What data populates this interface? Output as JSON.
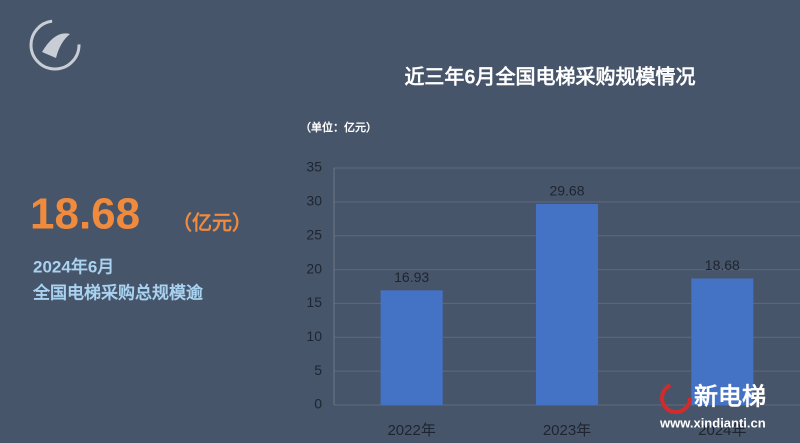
{
  "chart_data": {
    "type": "bar",
    "title": "近三年6月全国电梯采购规模情况",
    "unit_label": "（单位：亿元）",
    "categories": [
      "2022年",
      "2023年",
      "2024年"
    ],
    "values": [
      16.93,
      29.68,
      18.68
    ],
    "color": "#4472c4",
    "ylim": [
      0,
      35
    ],
    "yticks": [
      0,
      5,
      10,
      15,
      20,
      25,
      30,
      35
    ],
    "grid": true
  },
  "highlight": {
    "value": "18.68",
    "unit": "（亿元）",
    "line1": "2024年6月",
    "line2": "全国电梯采购总规模逾"
  },
  "watermark": {
    "brand": "新电梯",
    "url": "www.xindianti.cn"
  }
}
